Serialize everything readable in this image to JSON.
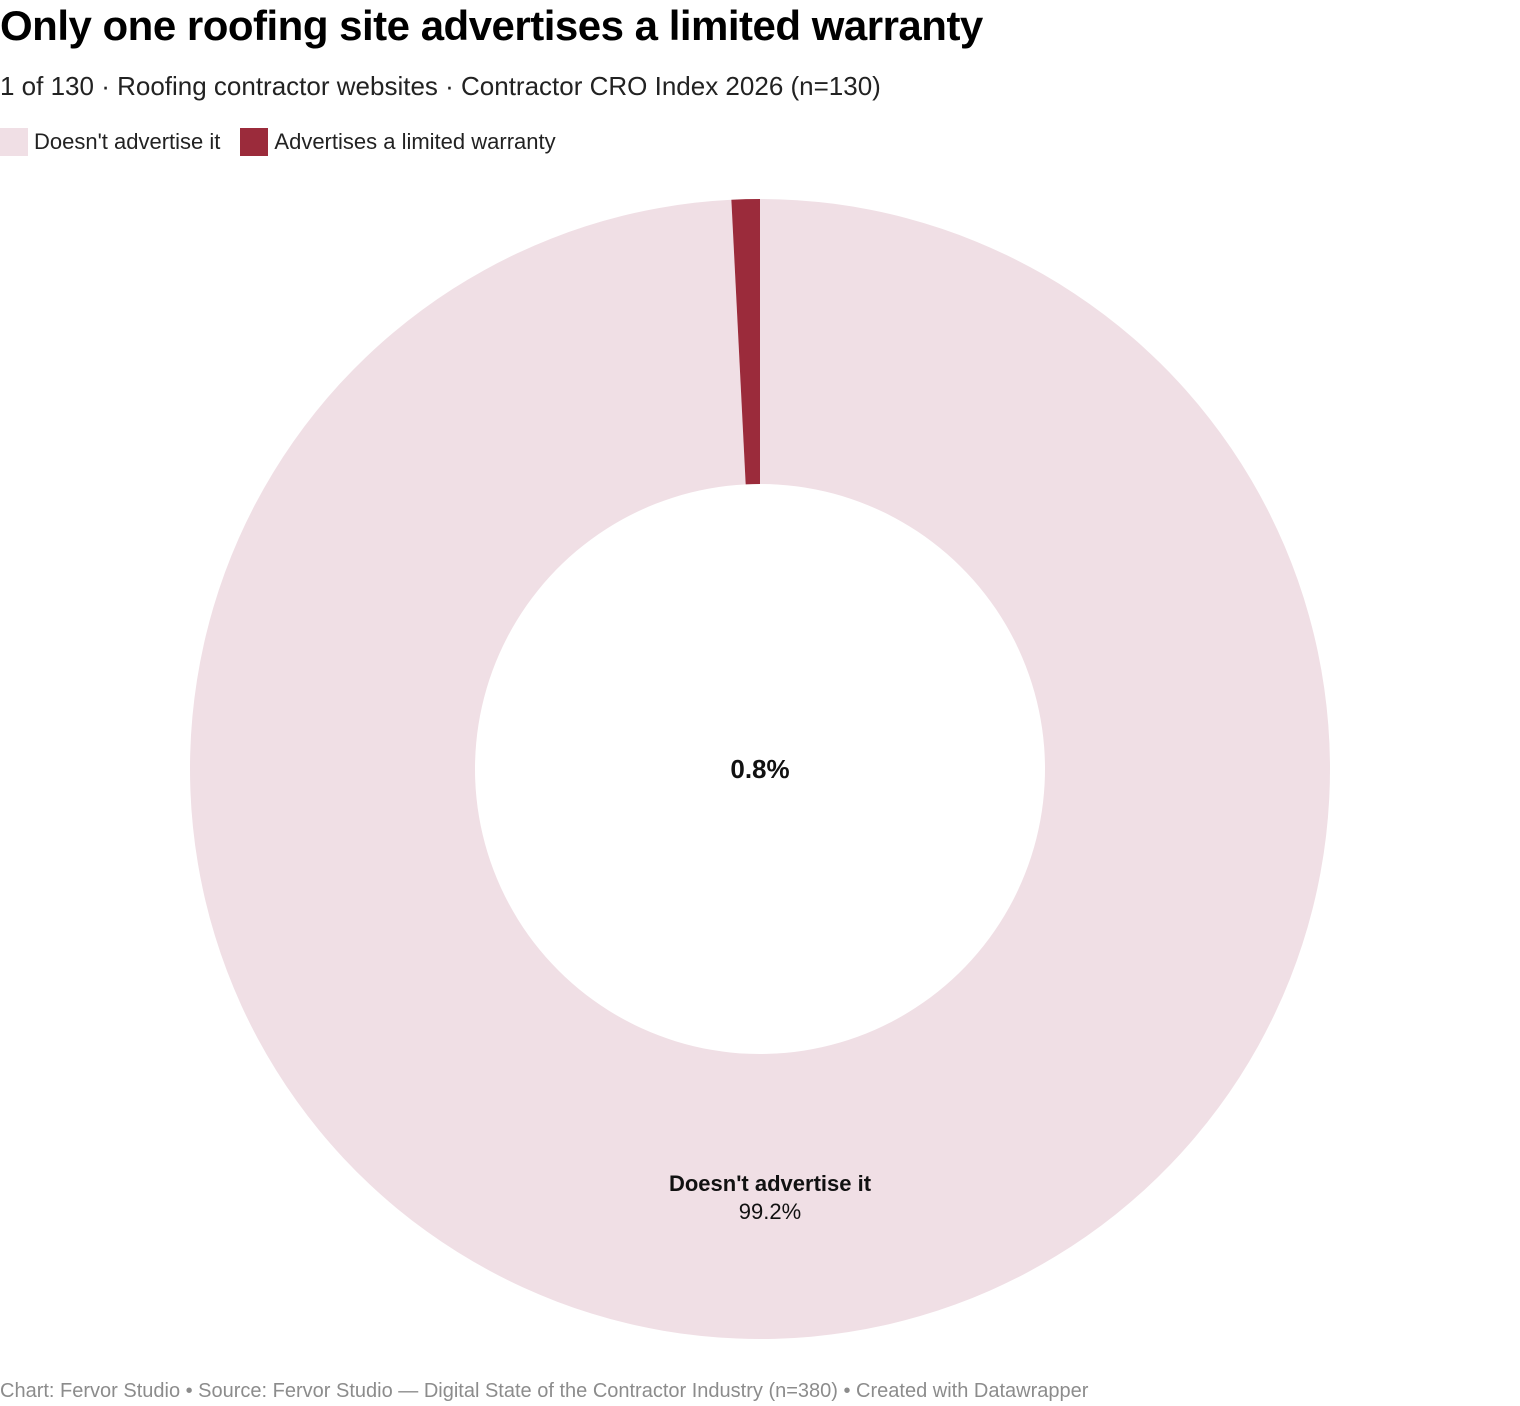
{
  "title": "Only one roofing site advertises a limited warranty",
  "subtitle": "1 of 130 · Roofing contractor websites · Contractor CRO Index 2026 (n=130)",
  "footer": "Chart: Fervor Studio • Source: Fervor Studio — Digital State of the Contractor Industry (n=380) • Created with Datawrapper",
  "chart_data": {
    "type": "pie",
    "donut": true,
    "title": "Only one roofing site advertises a limited warranty",
    "subtitle": "1 of 130 · Roofing contractor websites · Contractor CRO Index 2026 (n=130)",
    "legend_position": "top-left",
    "center_label": "0.8%",
    "slices": [
      {
        "label": "Doesn't advertise it",
        "value": 99.2,
        "value_label": "99.2%",
        "color": "#f0dfe5"
      },
      {
        "label": "Advertises a limited warranty",
        "value": 0.8,
        "value_label": "0.8%",
        "color": "#9b2b3b"
      }
    ]
  }
}
